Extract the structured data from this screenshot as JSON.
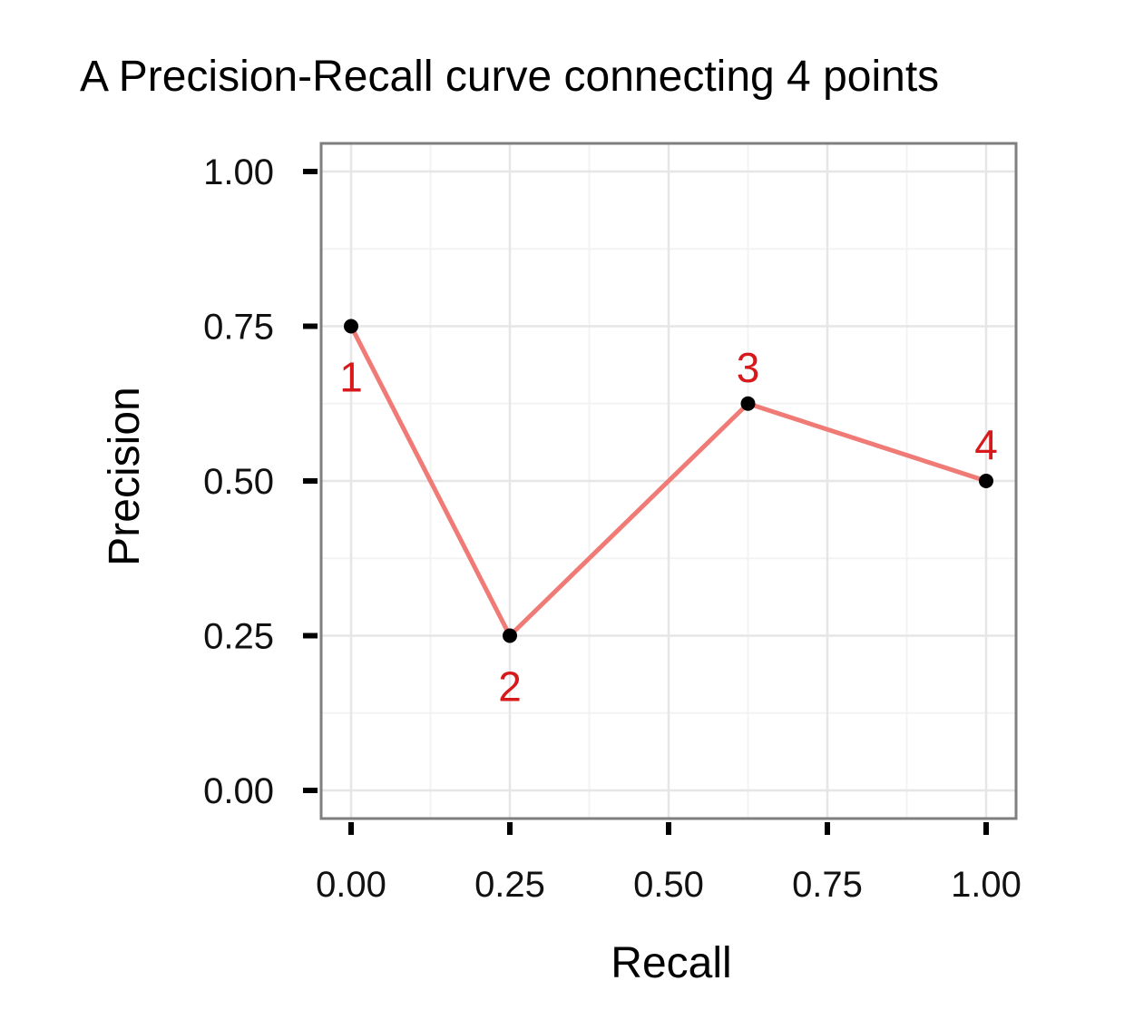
{
  "chart_data": {
    "type": "line",
    "title": "A Precision-Recall curve connecting 4 points",
    "xlabel": "Recall",
    "ylabel": "Precision",
    "xlim": [
      0,
      1
    ],
    "ylim": [
      0,
      1
    ],
    "x_ticks": [
      "0.00",
      "0.25",
      "0.50",
      "0.75",
      "1.00"
    ],
    "y_ticks": [
      "0.00",
      "0.25",
      "0.50",
      "0.75",
      "1.00"
    ],
    "grid": true,
    "series": [
      {
        "x": [
          0,
          0.25,
          0.625,
          1
        ],
        "y": [
          0.75,
          0.25,
          0.625,
          0.5
        ],
        "labels": [
          "1",
          "2",
          "3",
          "4"
        ],
        "label_side": [
          "below",
          "below",
          "above",
          "above"
        ]
      }
    ],
    "colors": {
      "line": "#f07b76",
      "point": "#000000",
      "label": "#d7191c",
      "grid": "#e6e6e6",
      "panel_border": "#7f7f7f",
      "tick": "#000000"
    }
  }
}
